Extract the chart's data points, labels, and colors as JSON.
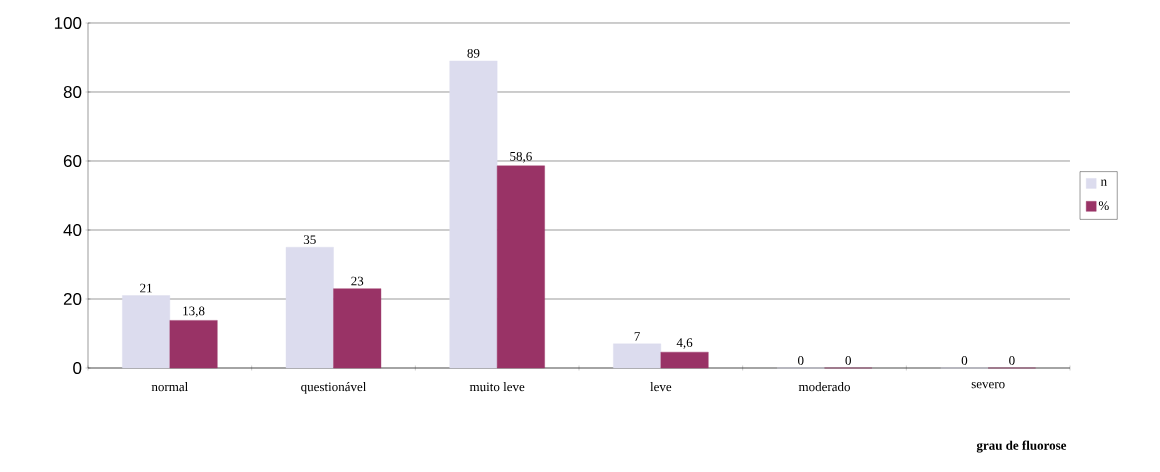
{
  "chart_data": {
    "type": "bar",
    "xlabel": "grau de fluorose",
    "categories": [
      "normal",
      "questionável",
      "muito leve",
      "leve",
      "moderado",
      "severo"
    ],
    "series": [
      {
        "name": "n",
        "color": "#dcdcee",
        "values": [
          21,
          35,
          89,
          7,
          0,
          0
        ],
        "value_labels": [
          "21",
          "35",
          "89",
          "7",
          "0",
          "0"
        ]
      },
      {
        "name": "%",
        "color": "#993366",
        "values": [
          13.8,
          23,
          58.6,
          4.6,
          0,
          0
        ],
        "value_labels": [
          "13,8",
          "23",
          "58,6",
          "4,6",
          "0",
          "0"
        ]
      }
    ],
    "ylim": [
      0,
      100
    ],
    "yticks": [
      0,
      20,
      40,
      60,
      80,
      100
    ],
    "grid": "y",
    "legend": "right"
  }
}
